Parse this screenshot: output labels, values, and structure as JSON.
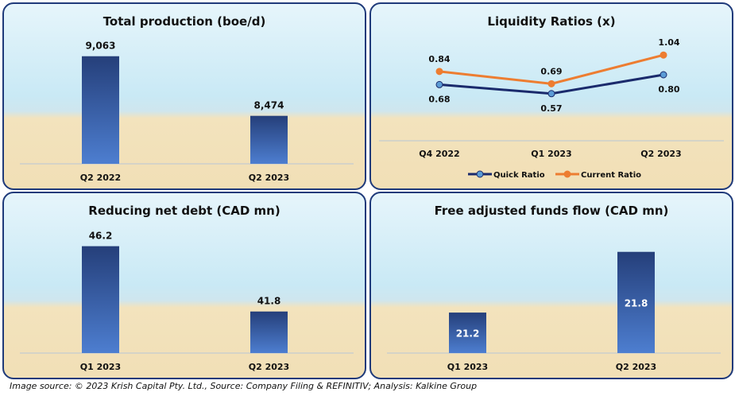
{
  "chart_data": [
    {
      "type": "bar",
      "title": "Total production (boe/d)",
      "categories": [
        "Q2 2022",
        "Q2 2023"
      ],
      "values": [
        9063,
        8474
      ],
      "labels": [
        "9,063",
        "8,474"
      ],
      "ylim": [
        8000,
        9100
      ]
    },
    {
      "type": "line",
      "title": "Liquidity Ratios (x)",
      "categories": [
        "Q4 2022",
        "Q1 2023",
        "Q2 2023"
      ],
      "ylim": [
        0.5,
        1.1
      ],
      "series": [
        {
          "name": "Quick Ratio",
          "values": [
            0.68,
            0.57,
            0.8
          ],
          "labels": [
            "0.68",
            "0.57",
            "0.80"
          ],
          "color": "#1a2a6c",
          "marker": "#5b9bd5"
        },
        {
          "name": "Current Ratio",
          "values": [
            0.84,
            0.69,
            1.04
          ],
          "labels": [
            "0.84",
            "0.69",
            "1.04"
          ],
          "color": "#ed7d31",
          "marker": "#ed7d31"
        }
      ]
    },
    {
      "type": "bar",
      "title": "Reducing net debt (CAD mn)",
      "categories": [
        "Q1 2023",
        "Q2 2023"
      ],
      "values": [
        46.2,
        41.8
      ],
      "labels": [
        "46.2",
        "41.8"
      ],
      "ylim": [
        39,
        46.5
      ]
    },
    {
      "type": "bar",
      "title": "Free adjusted funds flow (CAD mn)",
      "categories": [
        "Q1 2023",
        "Q2 2023"
      ],
      "values": [
        21.2,
        21.8
      ],
      "labels": [
        "21.2",
        "21.8"
      ],
      "ylim": [
        20.8,
        21.9
      ],
      "label_inside": true
    }
  ],
  "footer": "Image source: © 2023 Krish Capital Pty. Ltd., Source: Company Filing & REFINITIV; Analysis: Kalkine Group"
}
